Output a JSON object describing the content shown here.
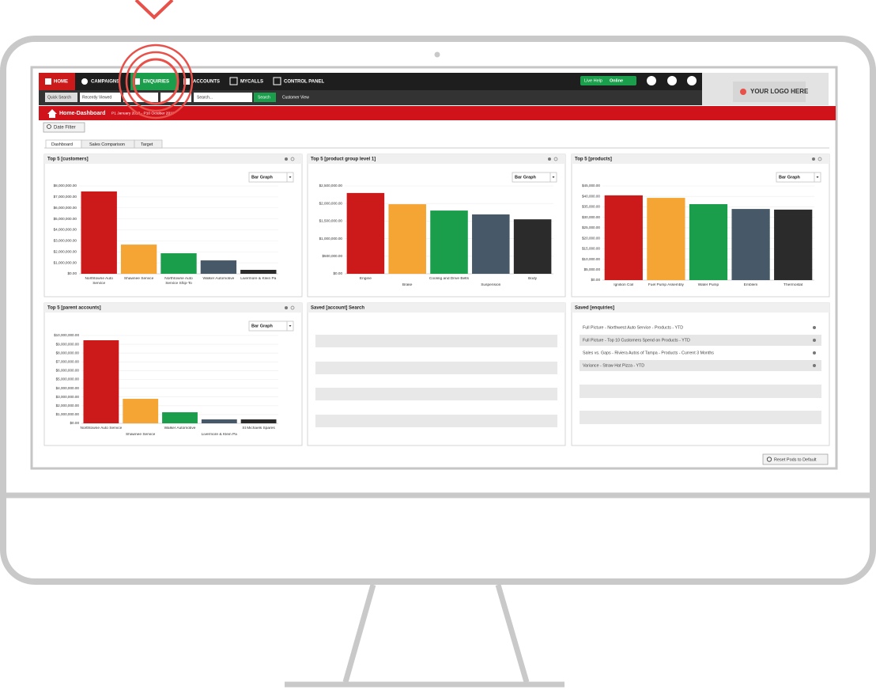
{
  "nav": {
    "items": [
      "HOME",
      "CAMPAIGNS",
      "ENQUIRIES",
      "ACCOUNTS",
      "MYCALLS",
      "CONTROL PANEL"
    ],
    "live_help": {
      "label": "Live Help",
      "status": "Online"
    },
    "logo": "YOUR LOGO HERE"
  },
  "search_bar": {
    "quick_search": "Quick Search",
    "recently_viewed": "Recently Viewed",
    "placeholder": "Search...",
    "button": "Search",
    "customer_view": "Customer View"
  },
  "breadcrumb": {
    "title": "Home-Dashboard",
    "period": "P1 January 2019 - P10 October 2019"
  },
  "date_filter": "Date Filter",
  "tabs": [
    "Dashboard",
    "Sales Comparison",
    "Target"
  ],
  "chart_data": [
    {
      "type": "bar",
      "title": "Top 5 [customers]",
      "selector": "Bar Graph",
      "grid": true,
      "categories": [
        "Northtowne Auto Service",
        "Shawnee Service",
        "Northtowne Auto Service Ship-To",
        "Walker Automotive",
        "Livermore & Klein Pa"
      ],
      "values": [
        7500000,
        2660000,
        1870000,
        1220000,
        360000
      ],
      "colors": [
        "#cc1a1a",
        "#f4a533",
        "#1a9e4b",
        "#475968",
        "#2b2b2b"
      ],
      "ylim": [
        0,
        8000000
      ],
      "yticks": [
        {
          "value": 0,
          "label": "$0.00"
        },
        {
          "value": 1000000,
          "label": "$1,000,000.00"
        },
        {
          "value": 2000000,
          "label": "$2,000,000.00"
        },
        {
          "value": 3000000,
          "label": "$3,000,000.00"
        },
        {
          "value": 4000000,
          "label": "$4,000,000.00"
        },
        {
          "value": 5000000,
          "label": "$5,000,000.00"
        },
        {
          "value": 6000000,
          "label": "$6,000,000.00"
        },
        {
          "value": 7000000,
          "label": "$7,000,000.00"
        },
        {
          "value": 8000000,
          "label": "$8,000,000.00"
        }
      ]
    },
    {
      "type": "bar",
      "title": "Top 5 [product group level 1]",
      "selector": "Bar Graph",
      "grid": true,
      "categories": [
        "Engine",
        "Brake",
        "Cooling and Drive Belts",
        "Suspension",
        "Body"
      ],
      "values": [
        2300000,
        1980000,
        1800000,
        1690000,
        1550000
      ],
      "colors": [
        "#cc1a1a",
        "#f4a533",
        "#1a9e4b",
        "#475968",
        "#2b2b2b"
      ],
      "ylim": [
        0,
        2500000
      ],
      "yticks": [
        {
          "value": 0,
          "label": "$0.00"
        },
        {
          "value": 500000,
          "label": "$500,000.00"
        },
        {
          "value": 1000000,
          "label": "$1,000,000.00"
        },
        {
          "value": 1500000,
          "label": "$1,500,000.00"
        },
        {
          "value": 2000000,
          "label": "$2,000,000.00"
        },
        {
          "value": 2500000,
          "label": "$2,500,000.00"
        }
      ]
    },
    {
      "type": "bar",
      "title": "Top 5 [products]",
      "selector": "Bar Graph",
      "grid": true,
      "categories": [
        "Ignition Coil",
        "Fuel Pump Assembly",
        "Water Pump",
        "Emblem",
        "Thermostat"
      ],
      "values": [
        40500,
        39300,
        36300,
        34000,
        33700
      ],
      "colors": [
        "#cc1a1a",
        "#f4a533",
        "#1a9e4b",
        "#475968",
        "#2b2b2b"
      ],
      "ylim": [
        0,
        45000
      ],
      "yticks": [
        {
          "value": 0,
          "label": "$0.00"
        },
        {
          "value": 5000,
          "label": "$5,000.00"
        },
        {
          "value": 10000,
          "label": "$10,000.00"
        },
        {
          "value": 15000,
          "label": "$15,000.00"
        },
        {
          "value": 20000,
          "label": "$20,000.00"
        },
        {
          "value": 25000,
          "label": "$25,000.00"
        },
        {
          "value": 30000,
          "label": "$30,000.00"
        },
        {
          "value": 35000,
          "label": "$35,000.00"
        },
        {
          "value": 40000,
          "label": "$40,000.00"
        },
        {
          "value": 45000,
          "label": "$45,000.00"
        }
      ]
    },
    {
      "type": "bar",
      "title": "Top 5 [parent accounts]",
      "selector": "Bar Graph",
      "grid": true,
      "categories": [
        "Northtowne Auto Service",
        "Shawnee Service",
        "Walker Automotive",
        "Livermore & Klein Pa",
        "St Michaels Spares"
      ],
      "values": [
        9460000,
        2790000,
        1260000,
        450000,
        450000
      ],
      "colors": [
        "#cc1a1a",
        "#f4a533",
        "#1a9e4b",
        "#475968",
        "#2b2b2b"
      ],
      "ylim": [
        0,
        10000000
      ],
      "yticks": [
        {
          "value": 0,
          "label": "$0.00"
        },
        {
          "value": 1000000,
          "label": "$1,000,000.00"
        },
        {
          "value": 2000000,
          "label": "$2,000,000.00"
        },
        {
          "value": 3000000,
          "label": "$3,000,000.00"
        },
        {
          "value": 4000000,
          "label": "$4,000,000.00"
        },
        {
          "value": 5000000,
          "label": "$5,000,000.00"
        },
        {
          "value": 6000000,
          "label": "$6,000,000.00"
        },
        {
          "value": 7000000,
          "label": "$7,000,000.00"
        },
        {
          "value": 8000000,
          "label": "$8,000,000.00"
        },
        {
          "value": 9000000,
          "label": "$9,000,000.00"
        },
        {
          "value": 10000000,
          "label": "$10,000,000.00"
        }
      ]
    }
  ],
  "saved_account_search": {
    "title": "Saved [account] Search"
  },
  "saved_enquiries": {
    "title": "Saved [enquiries]",
    "items": [
      "Full Picture - Northwest Auto Service - Products - YTD",
      "Full Picture - Top 10 Customers Spend on Products - YTD",
      "Sales vs. Gaps - Riviera Autos of Tampa - Products - Current 3 Months",
      "Variance - Straw Hat Pizza - YTD"
    ]
  },
  "reset_button": "Reset Pods to Default"
}
